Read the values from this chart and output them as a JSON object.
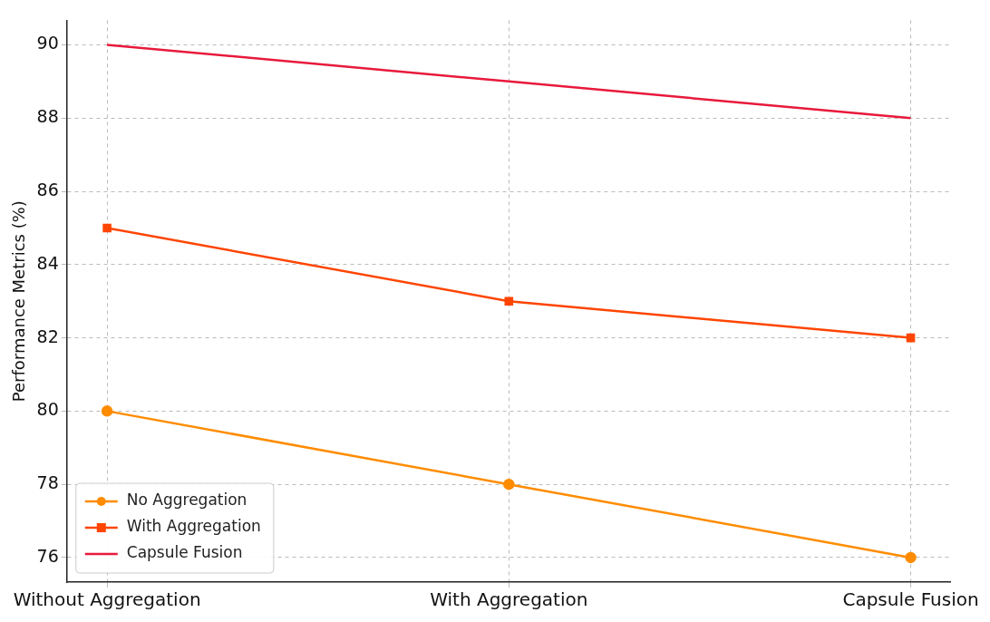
{
  "chart_data": {
    "type": "line",
    "ylabel": "Performance Metrics (%)",
    "categories": [
      "Without Aggregation",
      "With Aggregation",
      "Capsule Fusion"
    ],
    "series": [
      {
        "name": "No Aggregation",
        "color": "#ff8c00",
        "values": [
          80,
          78,
          76
        ],
        "marker": "circle"
      },
      {
        "name": "With Aggregation",
        "color": "#ff4500",
        "values": [
          85,
          83,
          82
        ],
        "marker": "square"
      },
      {
        "name": "Capsule Fusion",
        "color": "#e8193c",
        "values": [
          90,
          89,
          88
        ],
        "marker": "none"
      }
    ],
    "ylim": [
      75.33,
      90.67
    ],
    "yticks": [
      76,
      78,
      80,
      82,
      84,
      86,
      88,
      90
    ],
    "grid": true,
    "legend": "bottom left"
  }
}
